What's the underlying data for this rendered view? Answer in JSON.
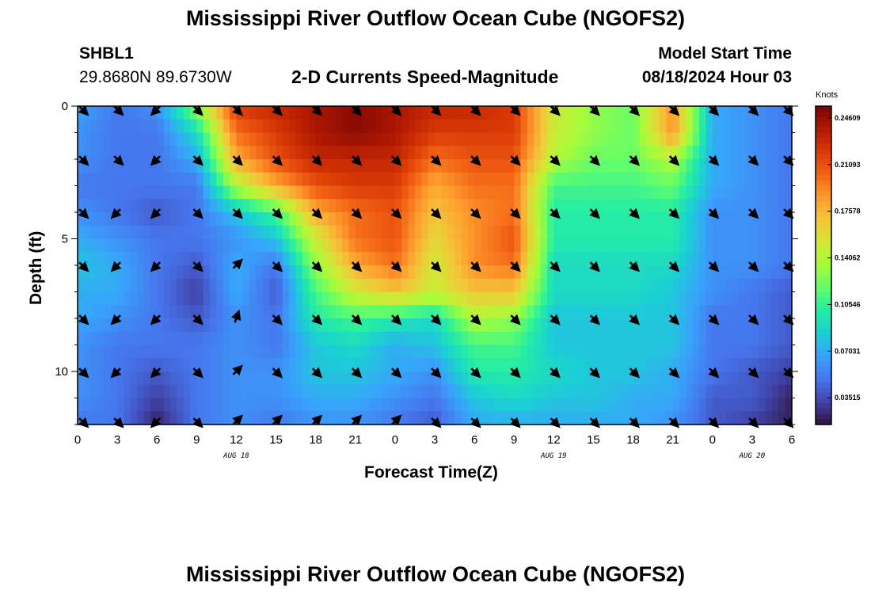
{
  "header": {
    "title": "Mississippi River Outflow Ocean Cube (NGOFS2)",
    "station_id": "SHBL1",
    "coordinates": "29.8680N  89.6730W",
    "subtitle": "2-D Currents Speed-Magnitude",
    "model_start_label": "Model Start Time",
    "model_start_value": "08/18/2024 Hour 03"
  },
  "footer": {
    "title": "Mississippi River Outflow Ocean Cube (NGOFS2)"
  },
  "chart_data": {
    "type": "heatmap",
    "title": "2-D Currents Speed-Magnitude",
    "xlabel": "Forecast Time(Z)",
    "ylabel": "Depth (ft)",
    "x_tick_labels": [
      "0",
      "3",
      "6",
      "9",
      "12",
      "15",
      "18",
      "21",
      "0",
      "3",
      "6",
      "9",
      "12",
      "15",
      "18",
      "21",
      "0",
      "3",
      "6"
    ],
    "x_date_labels": [
      {
        "label": "AUG 18",
        "hour": 12
      },
      {
        "label": "AUG 19",
        "hour": 36
      },
      {
        "label": "AUG 20",
        "hour": 51
      }
    ],
    "x_range_hours": [
      0,
      54
    ],
    "y_tick_labels": [
      "0",
      "5",
      "10"
    ],
    "ylim": [
      0,
      12
    ],
    "y_inverted": true,
    "colorbar": {
      "unit": "Knots",
      "ticks": [
        "0.24609",
        "0.21093",
        "0.17578",
        "0.14062",
        "0.10546",
        "0.07031",
        "0.03515"
      ],
      "range": [
        0.015,
        0.255
      ],
      "colors": [
        "#30123b",
        "#4145ab",
        "#4675ed",
        "#39a2fc",
        "#1bcfd4",
        "#24eca6",
        "#61fc6c",
        "#a4fc3b",
        "#d1e834",
        "#f3c63a",
        "#fe9b2d",
        "#f36315",
        "#d93806",
        "#b11901",
        "#7a0403"
      ]
    },
    "arrow_depths_ft": [
      0,
      2,
      4,
      6,
      8,
      10,
      12
    ],
    "arrow_hours": [
      0,
      3,
      6,
      9,
      12,
      15,
      18,
      21,
      24,
      27,
      30,
      33,
      36,
      39,
      42,
      45,
      48,
      51,
      54
    ],
    "arrow_directions_deg": [
      [
        135,
        135,
        225,
        135,
        135,
        135,
        135,
        135,
        135,
        135,
        135,
        135,
        135,
        135,
        135,
        135,
        135,
        135,
        135
      ],
      [
        135,
        135,
        225,
        135,
        135,
        135,
        135,
        135,
        135,
        135,
        135,
        135,
        135,
        135,
        135,
        135,
        135,
        135,
        135
      ],
      [
        135,
        225,
        225,
        135,
        135,
        135,
        135,
        135,
        135,
        135,
        135,
        135,
        135,
        135,
        135,
        135,
        135,
        135,
        135
      ],
      [
        135,
        225,
        225,
        135,
        45,
        135,
        135,
        135,
        135,
        135,
        135,
        135,
        135,
        135,
        135,
        135,
        135,
        135,
        135
      ],
      [
        135,
        225,
        225,
        135,
        20,
        135,
        135,
        135,
        135,
        135,
        135,
        135,
        135,
        135,
        135,
        135,
        135,
        135,
        135
      ],
      [
        135,
        225,
        225,
        135,
        45,
        135,
        135,
        135,
        135,
        135,
        135,
        135,
        135,
        135,
        135,
        135,
        135,
        135,
        135
      ],
      [
        135,
        135,
        225,
        135,
        45,
        45,
        45,
        45,
        45,
        135,
        135,
        135,
        135,
        135,
        135,
        135,
        135,
        135,
        135
      ]
    ],
    "speed_grid_knots": {
      "hours": [
        0,
        3,
        6,
        9,
        12,
        15,
        18,
        21,
        24,
        27,
        30,
        33,
        36,
        39,
        42,
        45,
        48,
        51,
        54
      ],
      "depths_ft": [
        0,
        1,
        2,
        3,
        4,
        5,
        6,
        7,
        8,
        9,
        10,
        11,
        12
      ],
      "values": [
        [
          0.07,
          0.05,
          0.06,
          0.13,
          0.22,
          0.23,
          0.24,
          0.25,
          0.24,
          0.23,
          0.23,
          0.22,
          0.15,
          0.13,
          0.12,
          0.19,
          0.07,
          0.06,
          0.05
        ],
        [
          0.06,
          0.05,
          0.05,
          0.09,
          0.2,
          0.22,
          0.24,
          0.25,
          0.24,
          0.22,
          0.22,
          0.22,
          0.15,
          0.13,
          0.12,
          0.19,
          0.07,
          0.06,
          0.05
        ],
        [
          0.06,
          0.05,
          0.05,
          0.07,
          0.18,
          0.21,
          0.23,
          0.23,
          0.23,
          0.2,
          0.21,
          0.21,
          0.14,
          0.12,
          0.12,
          0.14,
          0.07,
          0.06,
          0.05
        ],
        [
          0.05,
          0.05,
          0.05,
          0.05,
          0.14,
          0.18,
          0.21,
          0.22,
          0.22,
          0.18,
          0.2,
          0.2,
          0.11,
          0.11,
          0.11,
          0.12,
          0.07,
          0.06,
          0.05
        ],
        [
          0.06,
          0.05,
          0.04,
          0.05,
          0.08,
          0.11,
          0.18,
          0.2,
          0.21,
          0.17,
          0.19,
          0.2,
          0.1,
          0.1,
          0.1,
          0.1,
          0.06,
          0.06,
          0.05
        ],
        [
          0.07,
          0.06,
          0.05,
          0.05,
          0.06,
          0.08,
          0.15,
          0.2,
          0.21,
          0.16,
          0.19,
          0.21,
          0.1,
          0.1,
          0.1,
          0.1,
          0.06,
          0.06,
          0.05
        ],
        [
          0.08,
          0.07,
          0.05,
          0.04,
          0.07,
          0.05,
          0.13,
          0.18,
          0.2,
          0.15,
          0.19,
          0.2,
          0.09,
          0.09,
          0.09,
          0.09,
          0.06,
          0.06,
          0.05
        ],
        [
          0.07,
          0.07,
          0.05,
          0.03,
          0.07,
          0.04,
          0.11,
          0.15,
          0.17,
          0.15,
          0.17,
          0.17,
          0.09,
          0.09,
          0.09,
          0.08,
          0.06,
          0.05,
          0.04
        ],
        [
          0.07,
          0.06,
          0.05,
          0.04,
          0.06,
          0.05,
          0.1,
          0.11,
          0.1,
          0.09,
          0.14,
          0.13,
          0.08,
          0.08,
          0.08,
          0.08,
          0.05,
          0.05,
          0.04
        ],
        [
          0.06,
          0.05,
          0.05,
          0.05,
          0.06,
          0.05,
          0.08,
          0.09,
          0.07,
          0.08,
          0.11,
          0.11,
          0.08,
          0.08,
          0.08,
          0.08,
          0.05,
          0.05,
          0.04
        ],
        [
          0.06,
          0.05,
          0.04,
          0.05,
          0.06,
          0.06,
          0.08,
          0.08,
          0.07,
          0.06,
          0.1,
          0.1,
          0.09,
          0.08,
          0.08,
          0.07,
          0.05,
          0.04,
          0.03
        ],
        [
          0.06,
          0.05,
          0.03,
          0.05,
          0.06,
          0.06,
          0.07,
          0.07,
          0.06,
          0.05,
          0.08,
          0.09,
          0.08,
          0.08,
          0.07,
          0.07,
          0.04,
          0.04,
          0.02
        ],
        [
          0.05,
          0.05,
          0.02,
          0.05,
          0.06,
          0.05,
          0.06,
          0.06,
          0.05,
          0.04,
          0.07,
          0.07,
          0.07,
          0.07,
          0.07,
          0.06,
          0.04,
          0.03,
          0.02
        ]
      ]
    }
  }
}
